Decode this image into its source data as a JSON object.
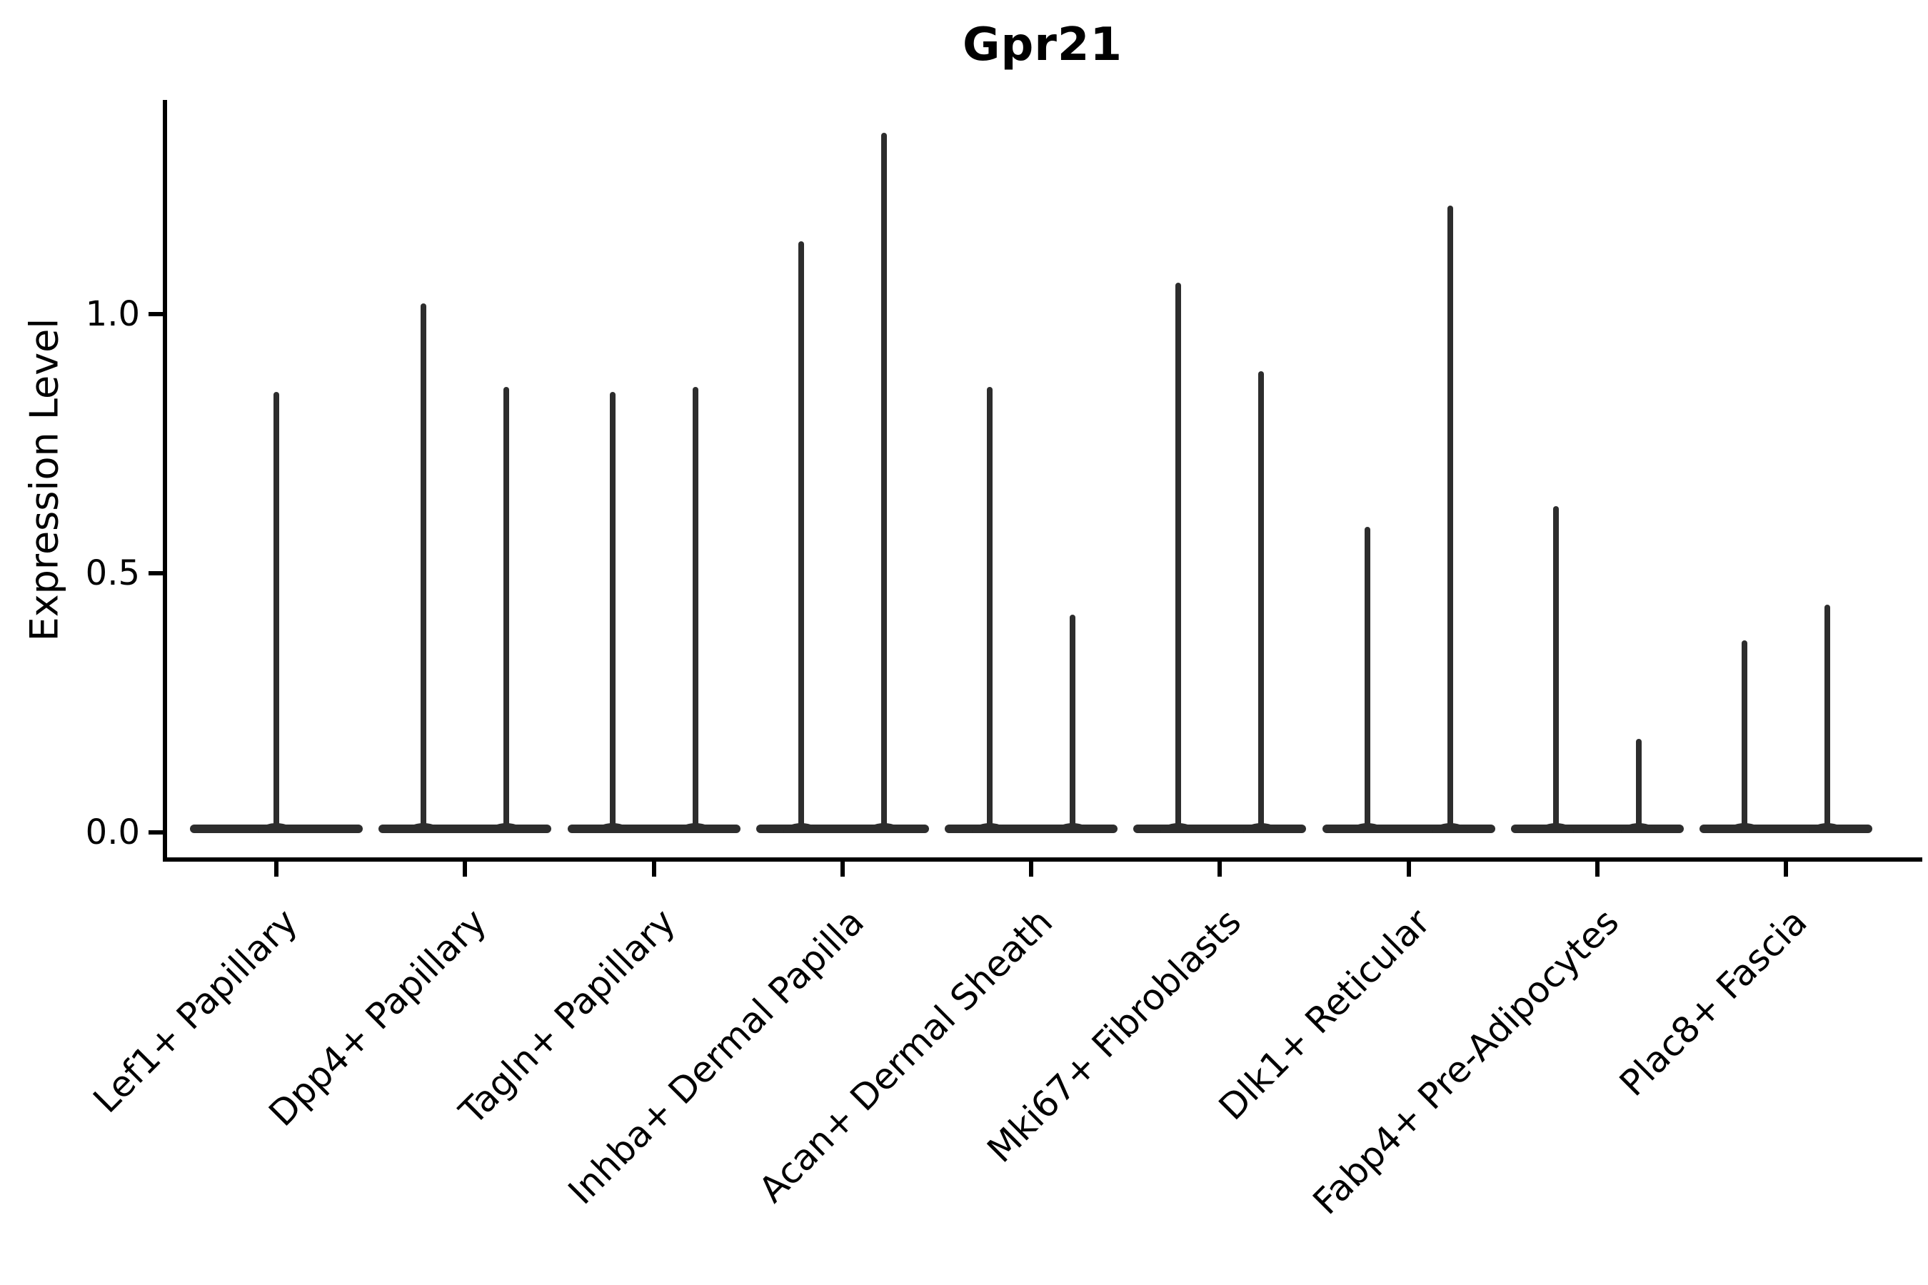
{
  "chart_data": {
    "type": "violin",
    "title": "Gpr21",
    "ylabel": "Expression Level",
    "xlabel": "",
    "grid": false,
    "legend": null,
    "ylim": [
      -0.052,
      1.413
    ],
    "yticks": [
      {
        "label": "0.0",
        "value": 0.0
      },
      {
        "label": "0.5",
        "value": 0.5
      },
      {
        "label": "1.0",
        "value": 1.0
      }
    ],
    "categories": [
      {
        "label": "Lef1+ Papillary",
        "violin_peaks": [
          0.85
        ]
      },
      {
        "label": "Dpp4+ Papillary",
        "violin_peaks": [
          1.02,
          0.86
        ]
      },
      {
        "label": "Tagln+ Papillary",
        "violin_peaks": [
          0.85,
          0.86
        ]
      },
      {
        "label": "Inhba+ Dermal Papilla",
        "violin_peaks": [
          1.14,
          1.35
        ]
      },
      {
        "label": "Acan+ Dermal Sheath",
        "violin_peaks": [
          0.86,
          0.42
        ]
      },
      {
        "label": "Mki67+ Fibroblasts",
        "violin_peaks": [
          1.06,
          0.89
        ]
      },
      {
        "label": "Dlk1+ Reticular",
        "violin_peaks": [
          0.59,
          1.21
        ]
      },
      {
        "label": "Fabp4+ Pre-Adipocytes",
        "violin_peaks": [
          0.63,
          0.18
        ]
      },
      {
        "label": "Plac8+ Fascia",
        "violin_peaks": [
          0.37,
          0.44
        ]
      }
    ],
    "style": {
      "violin_color": "#2d2d2d",
      "axis_color": "#000000",
      "background_color": "#ffffff"
    }
  }
}
